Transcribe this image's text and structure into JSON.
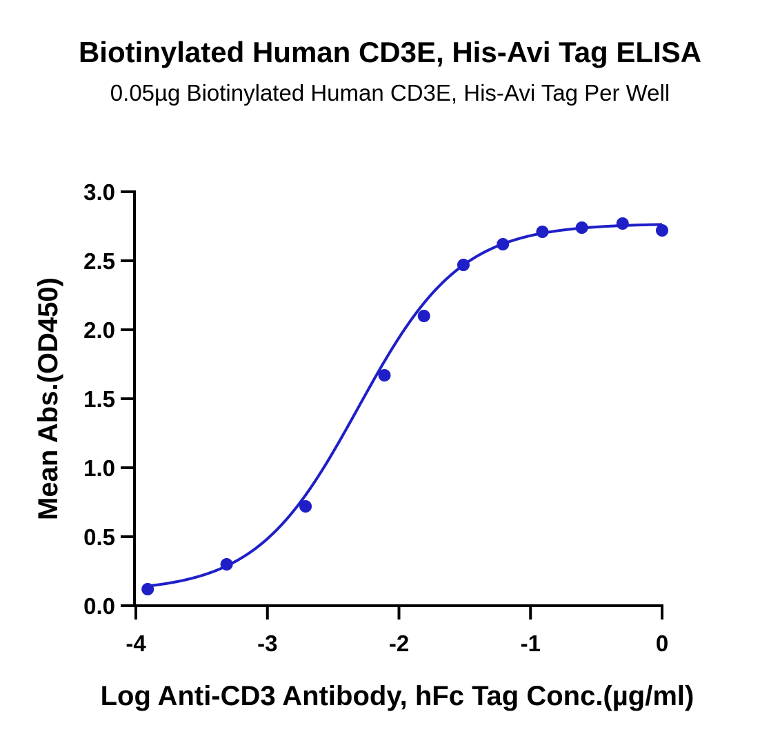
{
  "chart_data": {
    "type": "scatter",
    "title": "Biotinylated Human CD3E, His-Avi Tag ELISA",
    "subtitle": "0.05µg Biotinylated Human CD3E, His-Avi Tag Per Well",
    "xlabel": "Log Anti-CD3 Antibody, hFc Tag Conc.(µg/ml)",
    "ylabel": "Mean Abs.(OD450)",
    "xlim": [
      -4,
      0
    ],
    "ylim": [
      0,
      3.0
    ],
    "x_ticks": [
      -4,
      -3,
      -2,
      -1,
      0
    ],
    "x_tick_labels": [
      "-4",
      "-3",
      "-2",
      "-1",
      "0"
    ],
    "y_ticks": [
      0,
      0.5,
      1.0,
      1.5,
      2.0,
      2.5,
      3.0
    ],
    "y_tick_labels": [
      "0.0",
      "0.5",
      "1.0",
      "1.5",
      "2.0",
      "2.5",
      "3.0"
    ],
    "grid": false,
    "color": "#1f1fc8",
    "series": [
      {
        "x": [
          -3.91,
          -3.31,
          -2.71,
          -2.11,
          -1.81,
          -1.51,
          -1.21,
          -0.91,
          -0.61,
          -0.3,
          0.0
        ],
        "y": [
          0.12,
          0.3,
          0.72,
          1.67,
          2.1,
          2.47,
          2.62,
          2.71,
          2.74,
          2.77,
          2.72
        ]
      }
    ],
    "fit": {
      "model": "four-parameter logistic",
      "bottom": 0.1,
      "top": 2.77,
      "log_ec50": -2.31,
      "hill": 1.12
    }
  }
}
